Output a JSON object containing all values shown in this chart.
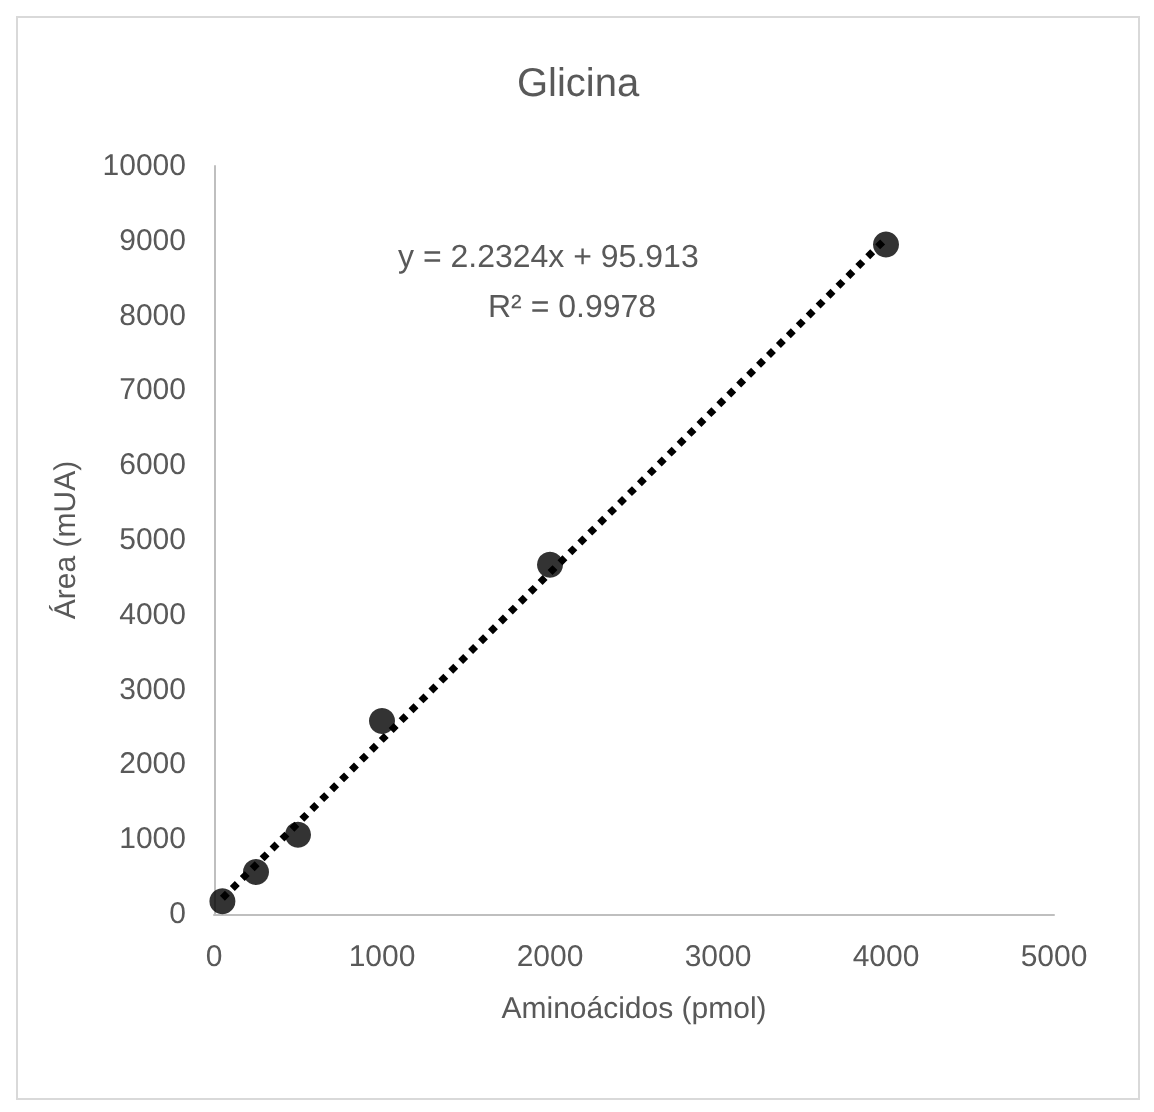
{
  "chart_data": {
    "type": "scatter",
    "title": "Glicina",
    "xlabel": "Aminoácidos (pmol)",
    "ylabel": "Área (mUA)",
    "annotations": [
      "y = 2.2324x + 95.913",
      "R² = 0.9978"
    ],
    "series": [
      {
        "type": "scatter",
        "color": "#000000",
        "x": [
          50,
          250,
          500,
          1000,
          2000,
          4000
        ],
        "values": [
          170,
          560,
          1060,
          2580,
          4670,
          8950
        ],
        "marker": "circle"
      },
      {
        "type": "line",
        "color": "#000000",
        "x": [
          50,
          4000
        ],
        "values": [
          210,
          9030
        ],
        "marker": "none",
        "line_style": "dotted"
      }
    ],
    "xlim": [
      0,
      5000
    ],
    "xticks": [
      0,
      1000,
      2000,
      3000,
      4000,
      5000
    ],
    "ylim": [
      0,
      10000
    ],
    "yticks": [
      0,
      1000,
      2000,
      3000,
      4000,
      5000,
      6000,
      7000,
      8000,
      9000,
      10000
    ],
    "grid": false
  }
}
